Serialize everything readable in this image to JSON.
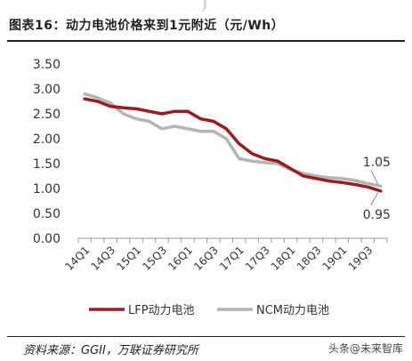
{
  "title": "图表16：动力电池价格来到1元附近（元/Wh）",
  "source": "资料来源：GGII，万联证券研究所",
  "watermark": "头条@未来智库",
  "chart_data": {
    "type": "line",
    "title": "图表16：动力电池价格来到1元附近（元/Wh）",
    "xlabel": "",
    "ylabel": "",
    "ylim": [
      0,
      3.5
    ],
    "yticks": [
      "0.00",
      "0.50",
      "1.00",
      "1.50",
      "2.00",
      "2.50",
      "3.00",
      "3.50"
    ],
    "x": [
      "14Q1",
      "14Q2",
      "14Q3",
      "14Q4",
      "15Q1",
      "15Q2",
      "15Q3",
      "15Q4",
      "16Q1",
      "16Q2",
      "16Q3",
      "16Q4",
      "17Q1",
      "17Q2",
      "17Q3",
      "17Q4",
      "18Q1",
      "18Q2",
      "18Q3",
      "18Q4",
      "19Q1",
      "19Q2",
      "19Q3",
      "19Q4"
    ],
    "xtick_labels": [
      "14Q1",
      "14Q3",
      "15Q1",
      "15Q3",
      "16Q1",
      "16Q3",
      "17Q1",
      "17Q3",
      "18Q1",
      "18Q3",
      "19Q1",
      "19Q3"
    ],
    "grid": false,
    "legend": "bottom",
    "series": [
      {
        "name": "LFP动力电池",
        "color": "#9b1c1f",
        "values": [
          2.8,
          2.75,
          2.65,
          2.62,
          2.6,
          2.55,
          2.5,
          2.55,
          2.55,
          2.4,
          2.35,
          2.2,
          1.9,
          1.7,
          1.6,
          1.55,
          1.4,
          1.25,
          1.2,
          1.15,
          1.12,
          1.08,
          1.03,
          0.95
        ]
      },
      {
        "name": "NCM动力电池",
        "color": "#b4b4b4",
        "values": [
          2.9,
          2.82,
          2.72,
          2.5,
          2.4,
          2.35,
          2.2,
          2.25,
          2.2,
          2.15,
          2.15,
          2.0,
          1.6,
          1.55,
          1.52,
          1.5,
          1.38,
          1.3,
          1.25,
          1.22,
          1.2,
          1.16,
          1.1,
          1.05
        ]
      }
    ],
    "annotations": [
      {
        "text": "1.05",
        "series": "NCM动力电池"
      },
      {
        "text": "0.95",
        "series": "LFP动力电池"
      }
    ]
  }
}
